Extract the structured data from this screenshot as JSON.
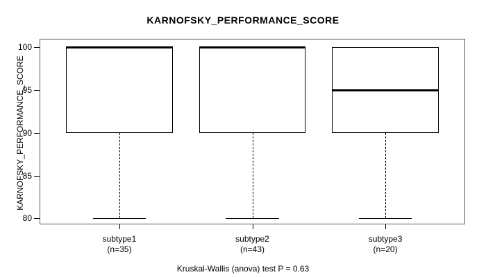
{
  "chart_data": {
    "type": "boxplot",
    "title": "KARNOFSKY_PERFORMANCE_SCORE",
    "ylabel": "KARNOFSKY_PERFORMANCE_SCORE",
    "footer": "Kruskal-Wallis (anova) test P = 0.63",
    "ylim": [
      79.3,
      101
    ],
    "yticks": [
      80,
      85,
      90,
      95,
      100
    ],
    "grid": false,
    "legend": null,
    "line_color": "#000000",
    "background": "#ffffff",
    "groups": [
      {
        "label": "subtype1",
        "n_label": "(n=35)",
        "whisker_low": 80,
        "q1": 90,
        "median": 100,
        "q3": 100,
        "whisker_high": 100
      },
      {
        "label": "subtype2",
        "n_label": "(n=43)",
        "whisker_low": 80,
        "q1": 90,
        "median": 100,
        "q3": 100,
        "whisker_high": 100
      },
      {
        "label": "subtype3",
        "n_label": "(n=20)",
        "whisker_low": 80,
        "q1": 90,
        "median": 95,
        "q3": 100,
        "whisker_high": 100
      }
    ]
  }
}
